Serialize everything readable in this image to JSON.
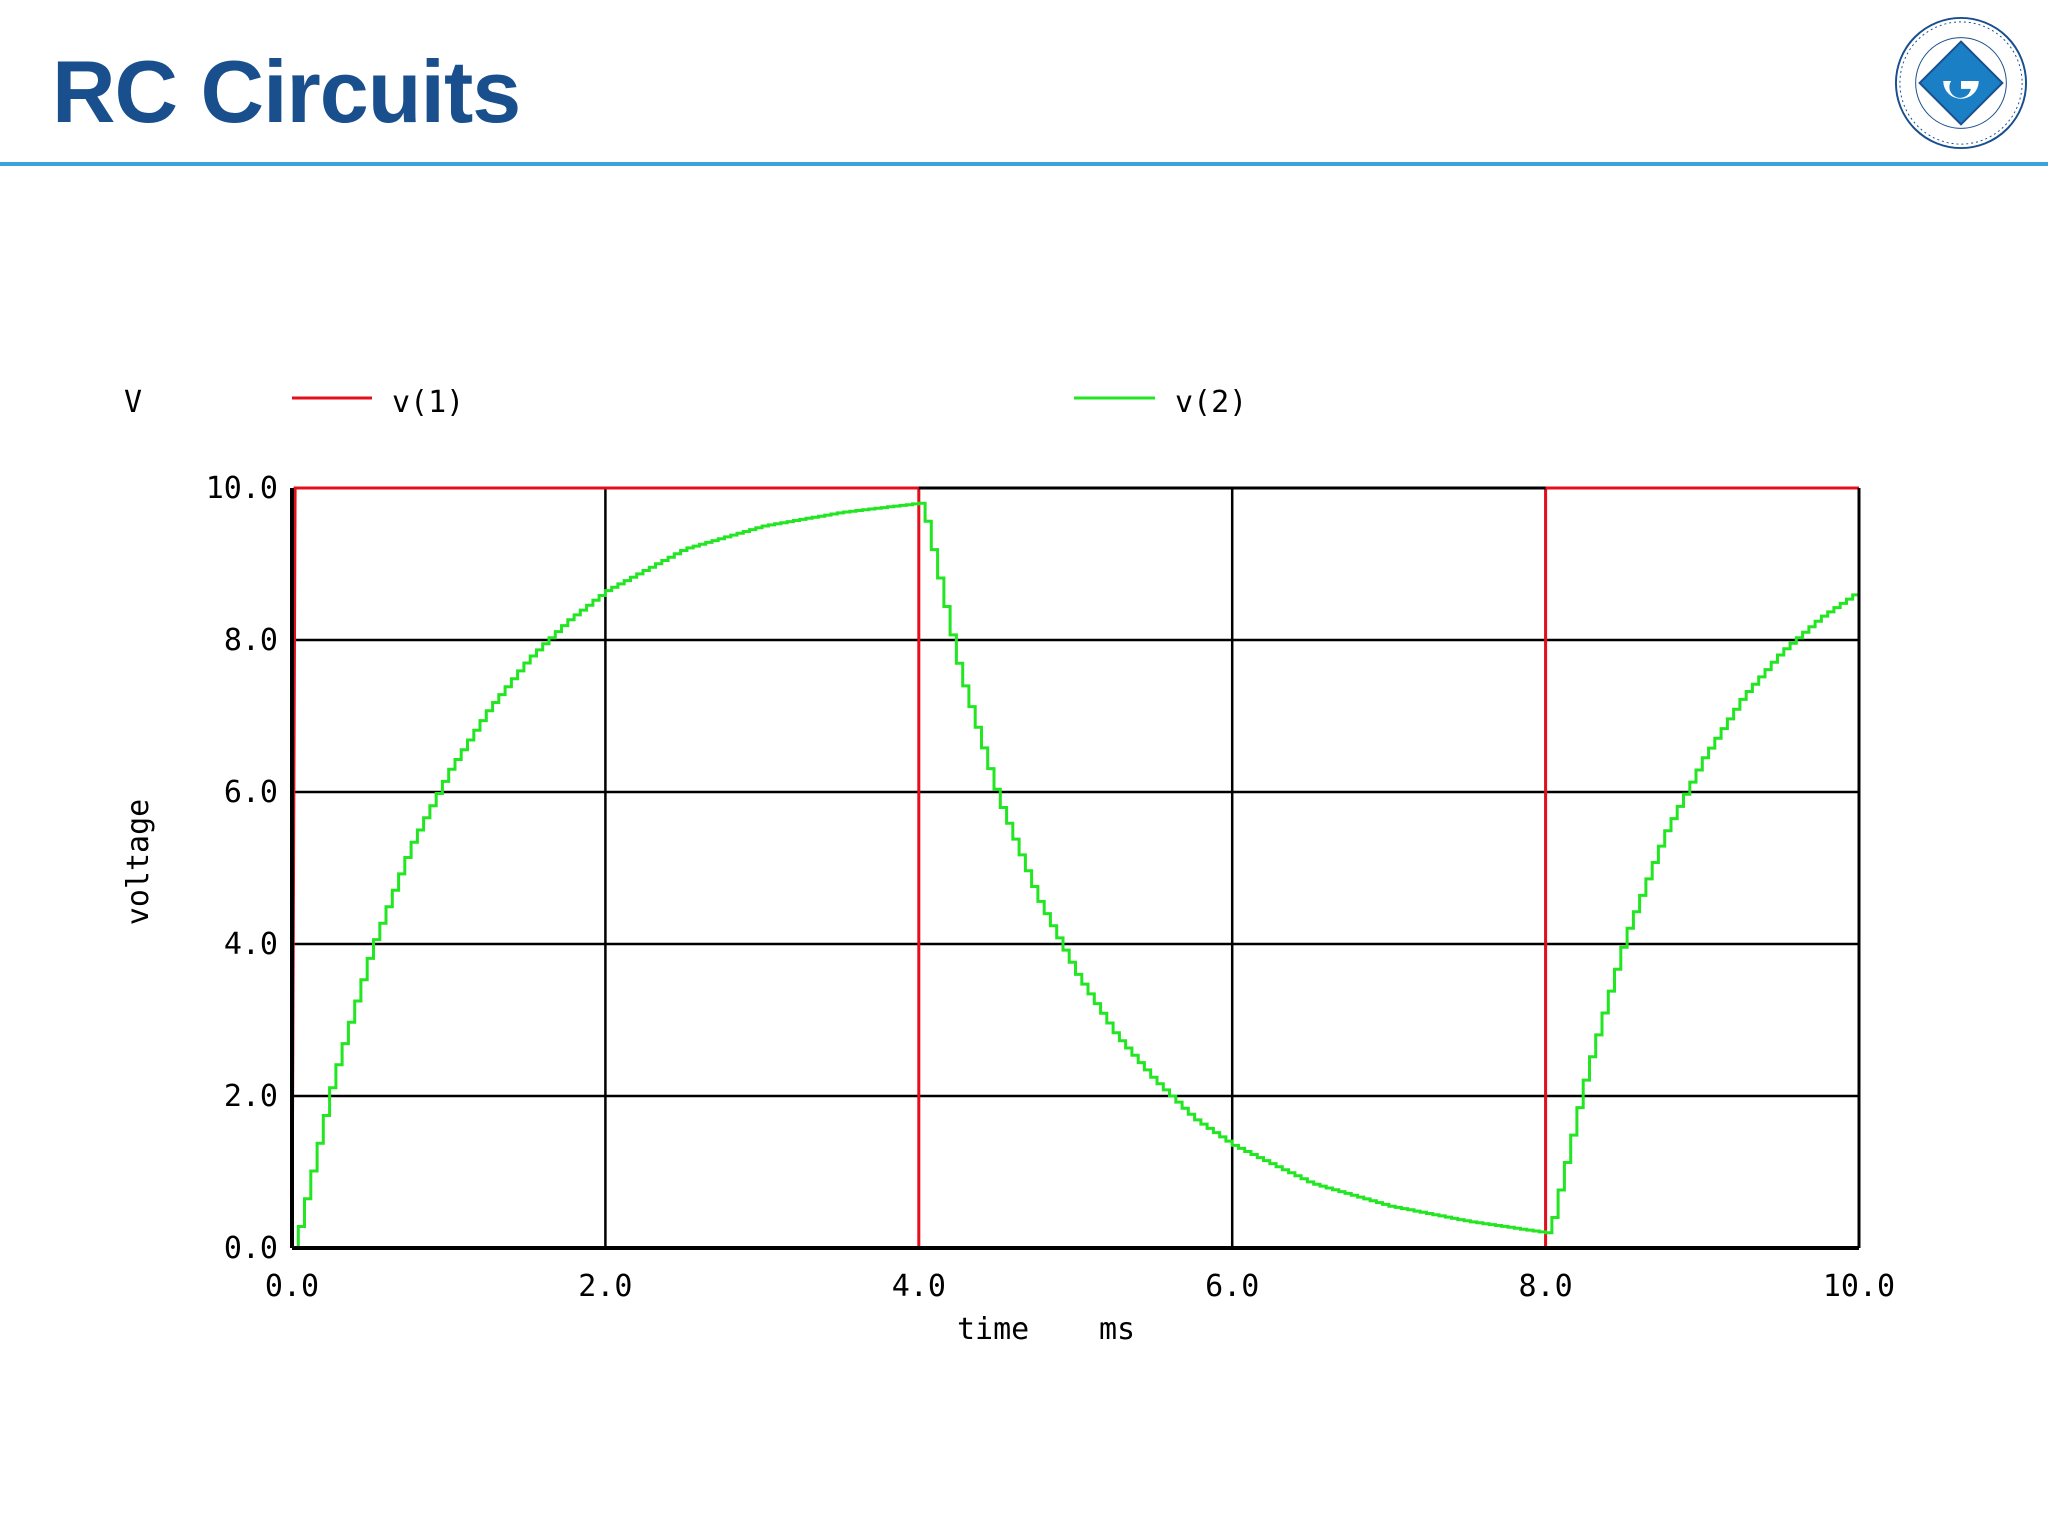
{
  "slide": {
    "title": "RC Circuits"
  },
  "logo": {
    "ring_text": "BOĞAZİÇİ ÜNİVERSİTESİ",
    "year": "1863"
  },
  "colors": {
    "title": "#1a4f8e",
    "rule": "#3aa3d9",
    "v1": "#e3101c",
    "v2": "#22e622",
    "grid": "#000000"
  },
  "chart_data": {
    "type": "line",
    "title": "",
    "xlabel": "time",
    "xunit": "ms",
    "ylabel": "voltage",
    "yunit": "V",
    "xlim": [
      0,
      10
    ],
    "ylim": [
      0,
      10
    ],
    "xticks": [
      "0.0",
      "2.0",
      "4.0",
      "6.0",
      "8.0",
      "10.0"
    ],
    "yticks": [
      "0.0",
      "2.0",
      "4.0",
      "6.0",
      "8.0",
      "10.0"
    ],
    "grid": true,
    "legend_position": "top",
    "series": [
      {
        "name": "v(1)",
        "color": "#e3101c",
        "x": [
          0,
          0.02,
          4.0,
          4.0,
          8.0,
          8.0,
          10.0
        ],
        "y": [
          0,
          10,
          10,
          0,
          0,
          10,
          10
        ]
      },
      {
        "name": "v(2)",
        "color": "#22e622",
        "x": [
          0.0,
          0.02,
          0.25,
          0.5,
          0.75,
          1.0,
          1.25,
          1.5,
          1.75,
          2.0,
          2.5,
          3.0,
          3.5,
          4.0,
          4.02,
          4.25,
          4.5,
          4.75,
          5.0,
          5.25,
          5.5,
          5.75,
          6.0,
          6.5,
          7.0,
          7.5,
          8.0,
          8.02,
          8.25,
          8.5,
          8.75,
          9.0,
          9.25,
          9.5,
          9.75,
          10.0
        ],
        "y": [
          0.0,
          0.1,
          2.2,
          3.95,
          5.3,
          6.3,
          7.1,
          7.75,
          8.25,
          8.65,
          9.2,
          9.5,
          9.68,
          9.8,
          9.75,
          7.6,
          5.9,
          4.6,
          3.6,
          2.8,
          2.2,
          1.7,
          1.35,
          0.85,
          0.55,
          0.35,
          0.2,
          0.22,
          2.3,
          4.1,
          5.45,
          6.45,
          7.25,
          7.85,
          8.3,
          8.65
        ]
      }
    ]
  }
}
